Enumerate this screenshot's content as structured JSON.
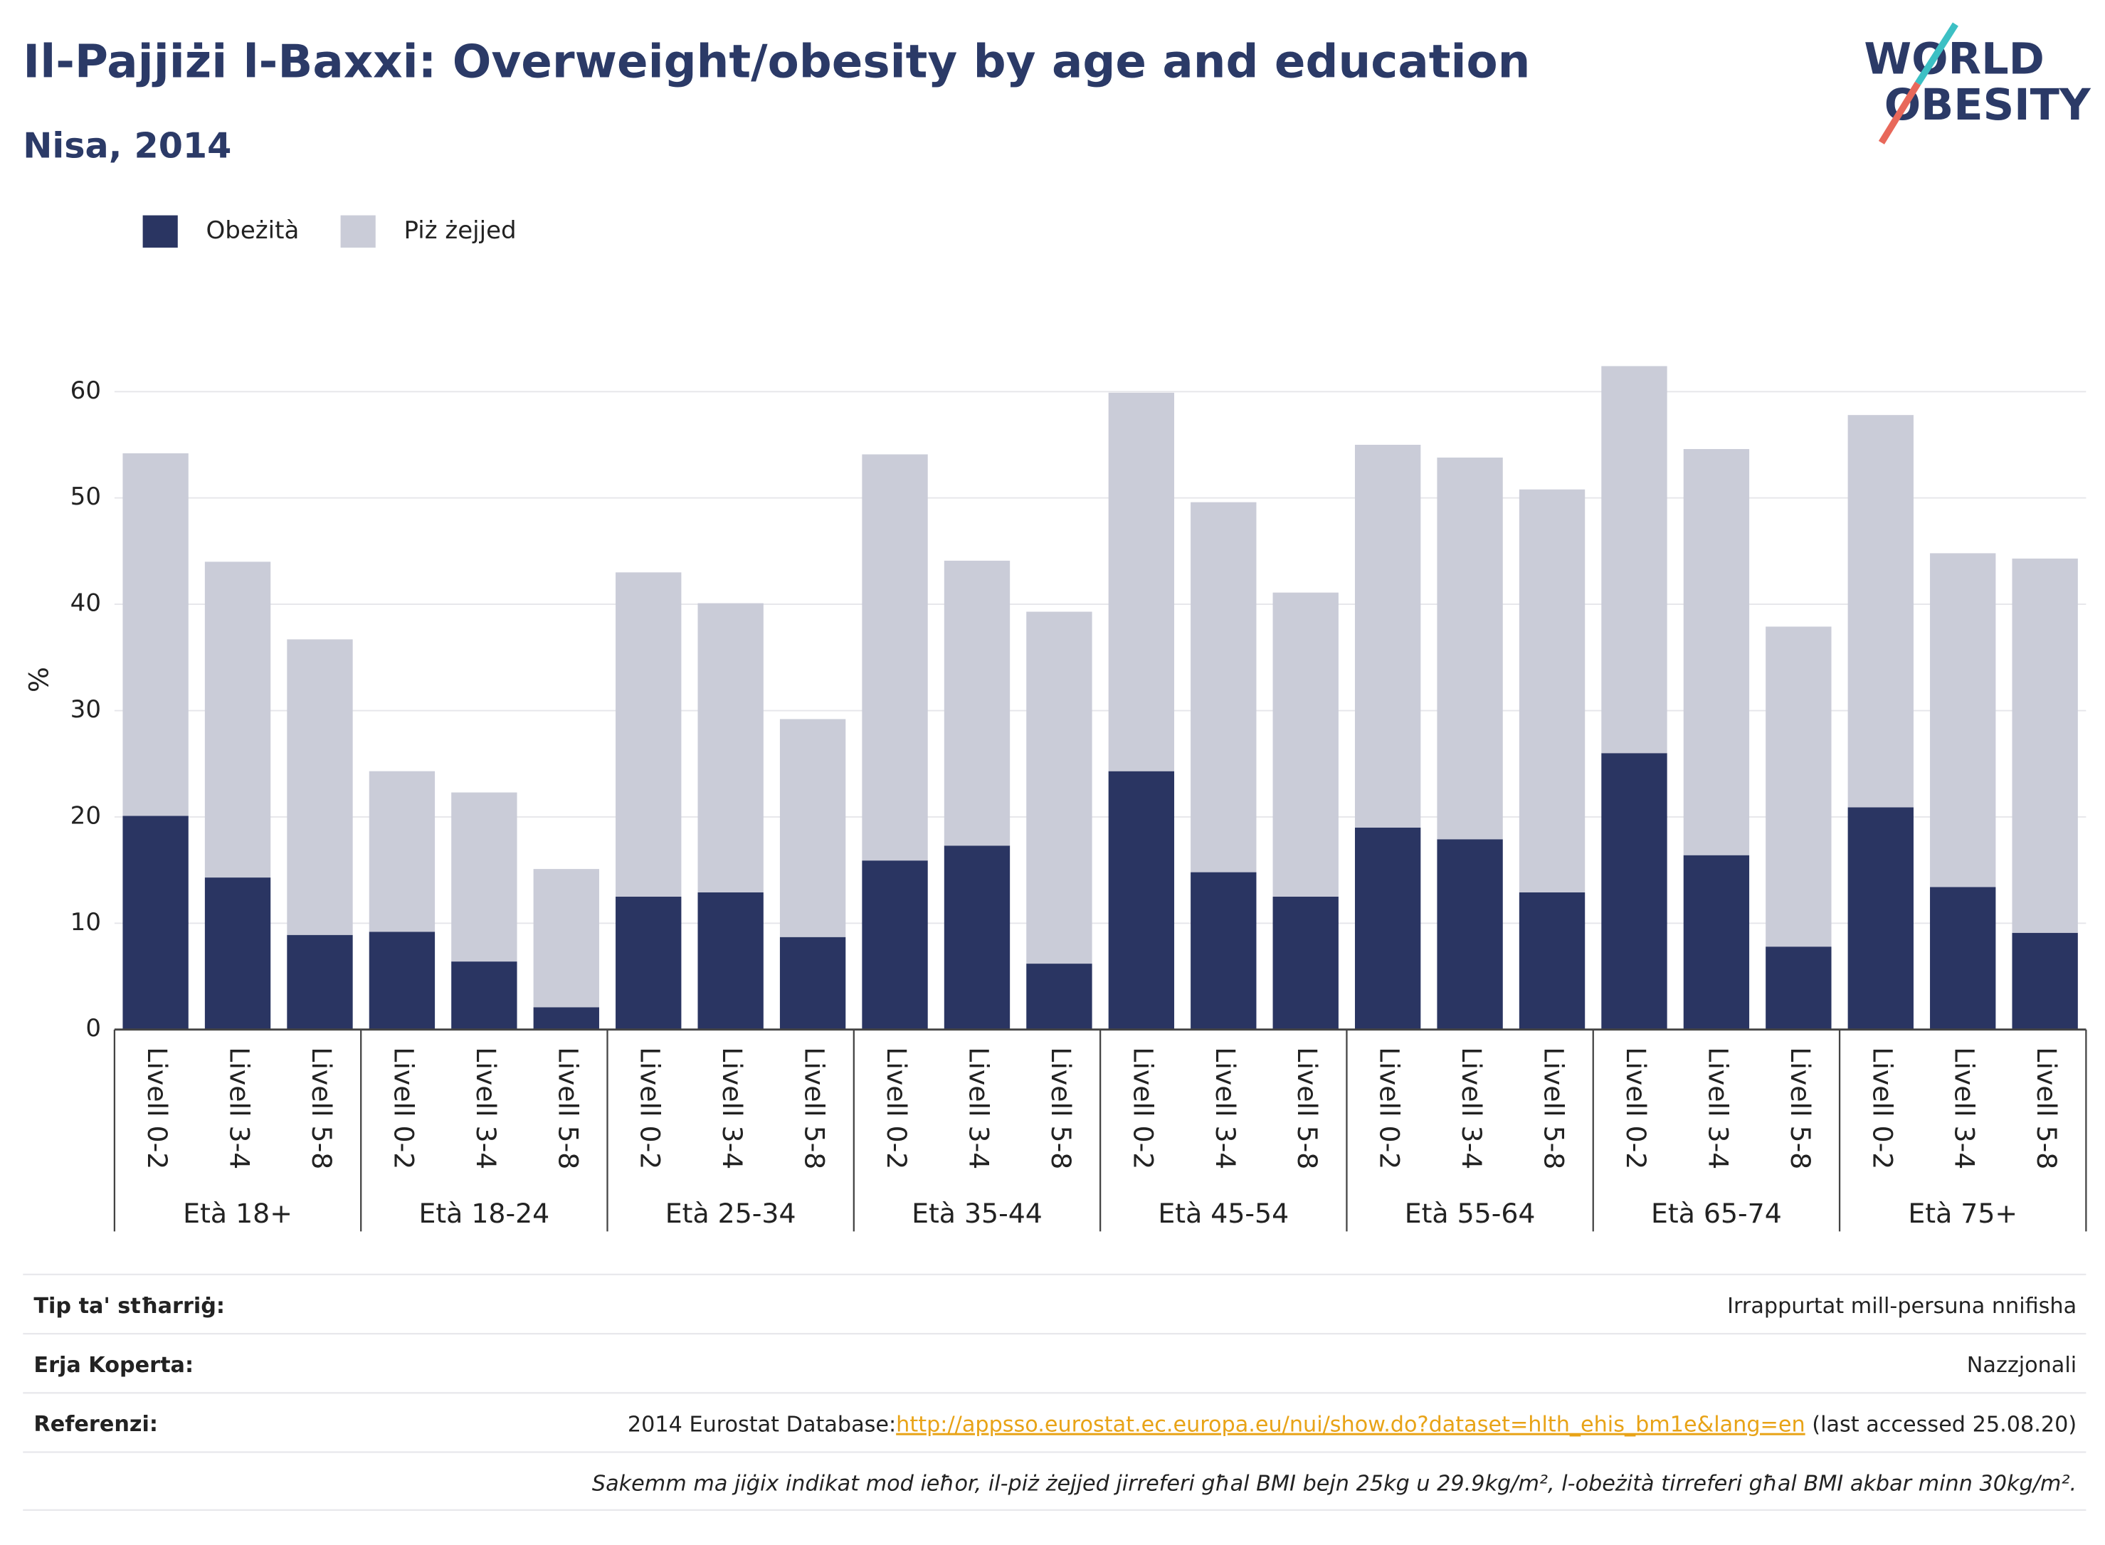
{
  "chart_data": {
    "type": "bar",
    "stacked": true,
    "title": "Il-Pajjiżi l-Baxxi: Overweight/obesity by age and education",
    "subtitle": "Nisa, 2014",
    "y_label": "%",
    "categories": [
      "Livell 0-2",
      "Livell 3-4",
      "Livell 5-8",
      "Livell 0-2",
      "Livell 3-4",
      "Livell 5-8",
      "Livell 0-2",
      "Livell 3-4",
      "Livell 5-8",
      "Livell 0-2",
      "Livell 3-4",
      "Livell 5-8",
      "Livell 0-2",
      "Livell 3-4",
      "Livell 5-8",
      "Livell 0-2",
      "Livell 3-4",
      "Livell 5-8",
      "Livell 0-2",
      "Livell 3-4",
      "Livell 5-8",
      "Livell 0-2",
      "Livell 3-4",
      "Livell 5-8"
    ],
    "groups": [
      "Età 18+",
      "Età 18-24",
      "Età 25-34",
      "Età 35-44",
      "Età 45-54",
      "Età 55-64",
      "Età 65-74",
      "Età 75+"
    ],
    "series": [
      {
        "name": "Obeżità",
        "color": "#2a3562",
        "values": [
          20.1,
          14.3,
          8.9,
          9.2,
          6.4,
          2.1,
          12.5,
          12.9,
          8.7,
          15.9,
          17.3,
          6.2,
          24.3,
          14.8,
          12.5,
          19.0,
          17.9,
          12.9,
          26.0,
          16.4,
          7.8,
          20.9,
          13.4,
          9.1
        ]
      },
      {
        "name": "Piż żejjed",
        "color": "#caccd8",
        "values": [
          34.1,
          29.7,
          27.8,
          15.1,
          15.9,
          13.0,
          30.5,
          27.2,
          20.5,
          38.2,
          26.8,
          33.1,
          35.6,
          34.8,
          28.6,
          36.0,
          35.9,
          37.9,
          36.4,
          38.2,
          30.1,
          36.9,
          31.4,
          35.2
        ]
      }
    ],
    "ylim": [
      0,
      65
    ],
    "yticks": [
      0,
      10,
      20,
      30,
      40,
      50,
      60
    ],
    "grid": true,
    "legend": "top-left"
  },
  "logo": {
    "line1": "WORLD",
    "line2": "OBESITY"
  },
  "footer": {
    "rows": [
      {
        "label": "Tip ta' stħarriġ:",
        "value": "Irrappurtat mill-persuna nnifisha"
      },
      {
        "label": "Erja Koperta:",
        "value": "Nazzjonali"
      }
    ],
    "reference": {
      "label": "Referenzi:",
      "prefix": "2014 Eurostat Database:",
      "link": "http://appsso.eurostat.ec.europa.eu/nui/show.do?dataset=hlth_ehis_bm1e&lang=en",
      "suffix": " (last accessed 25.08.20)"
    },
    "note": "Sakemm ma jiġix indikat mod ieħor, il-piż żejjed jirreferi għal BMI bejn 25kg u 29.9kg/m², l-obeżità tirreferi għal BMI akbar minn 30kg/m²."
  }
}
